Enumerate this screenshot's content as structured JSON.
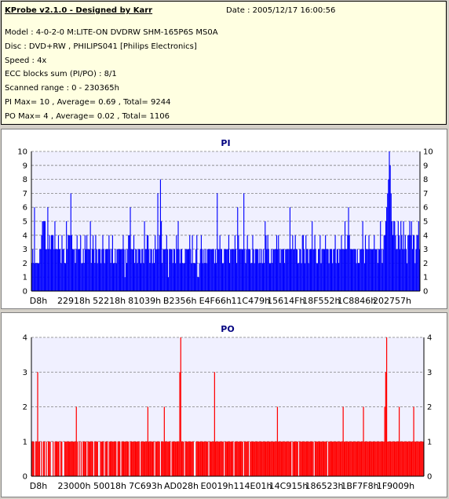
{
  "header": {
    "title": "KProbe v2.1.0 - Designed by Karr",
    "date": "Date : 2005/12/17 16:00:56",
    "lines": [
      "Model : 4-0-2-0 M:LITE-ON DVDRW SHM-165P6S MS0A",
      "Disc : DVD+RW , PHILIPS041 [Philips Electronics]",
      "Speed : 4x",
      "ECC blocks sum (PI/PO) : 8/1",
      "Scanned range : 0 - 230365h",
      "PI Max= 10 , Average= 0.69 , Total= 9244",
      "PO Max= 4 , Average= 0.02 , Total= 1106"
    ]
  },
  "chart_data": [
    {
      "type": "bar",
      "title": "PI",
      "color": "#0000ff",
      "ylim": [
        0,
        10
      ],
      "yticks": [
        0,
        1,
        2,
        3,
        4,
        5,
        6,
        7,
        8,
        9,
        10
      ],
      "xtick_labels": [
        "D8h",
        "22918h",
        "52218h",
        "81039h",
        "B2356h",
        "E4F66h",
        "11C479h",
        "15614Fh",
        "18F552h",
        "1C8846h",
        "202757h"
      ],
      "grid": true,
      "values": [
        2,
        3,
        2,
        6,
        2,
        2,
        2,
        2,
        2,
        3,
        3,
        4,
        5,
        5,
        5,
        5,
        3,
        3,
        6,
        3,
        4,
        3,
        4,
        4,
        4,
        3,
        5,
        3,
        3,
        3,
        4,
        3,
        3,
        2,
        4,
        3,
        3,
        2,
        2,
        5,
        3,
        4,
        4,
        4,
        7,
        4,
        3,
        3,
        3,
        2,
        3,
        4,
        3,
        3,
        3,
        4,
        2,
        2,
        3,
        2,
        4,
        3,
        4,
        3,
        3,
        3,
        5,
        2,
        3,
        4,
        3,
        2,
        4,
        3,
        2,
        3,
        3,
        3,
        2,
        3,
        4,
        3,
        2,
        3,
        3,
        3,
        3,
        4,
        3,
        2,
        3,
        4,
        2,
        2,
        3,
        2,
        3,
        3,
        3,
        3,
        3,
        3,
        3,
        4,
        3,
        1,
        3,
        2,
        3,
        4,
        4,
        6,
        3,
        3,
        3,
        4,
        2,
        3,
        3,
        2,
        3,
        3,
        3,
        2,
        3,
        3,
        2,
        5,
        3,
        3,
        4,
        4,
        3,
        2,
        3,
        3,
        2,
        3,
        2,
        4,
        3,
        3,
        7,
        3,
        4,
        8,
        5,
        2,
        3,
        3,
        3,
        3,
        4,
        3,
        1,
        3,
        3,
        3,
        3,
        2,
        3,
        3,
        2,
        4,
        3,
        5,
        3,
        2,
        3,
        3,
        2,
        2,
        2,
        3,
        3,
        3,
        3,
        3,
        4,
        3,
        2,
        4,
        2,
        2,
        2,
        3,
        4,
        1,
        1,
        2,
        3,
        4,
        3,
        2,
        3,
        2,
        3,
        2,
        3,
        3,
        3,
        3,
        3,
        3,
        3,
        3,
        2,
        3,
        2,
        7,
        3,
        3,
        4,
        3,
        3,
        2,
        2,
        3,
        3,
        3,
        3,
        3,
        4,
        2,
        3,
        3,
        3,
        3,
        3,
        4,
        3,
        2,
        6,
        4,
        3,
        3,
        3,
        3,
        3,
        7,
        3,
        2,
        3,
        4,
        3,
        3,
        3,
        2,
        2,
        4,
        3,
        2,
        3,
        3,
        3,
        3,
        2,
        3,
        2,
        3,
        2,
        3,
        2,
        5,
        4,
        3,
        4,
        3,
        2,
        2,
        3,
        2,
        3,
        3,
        3,
        3,
        4,
        3,
        4,
        3,
        2,
        3,
        3,
        3,
        3,
        2,
        3,
        3,
        3,
        3,
        3,
        6,
        3,
        3,
        4,
        3,
        3,
        4,
        3,
        3,
        2,
        2,
        3,
        3,
        2,
        4,
        4,
        3,
        2,
        4,
        3,
        3,
        2,
        3,
        3,
        3,
        5,
        3,
        3,
        4,
        3,
        2,
        2,
        3,
        3,
        4,
        2,
        3,
        3,
        3,
        3,
        4,
        3,
        3,
        3,
        2,
        3,
        3,
        3,
        2,
        3,
        3,
        4,
        2,
        3,
        3,
        2,
        3,
        3,
        4,
        3,
        3,
        3,
        5,
        3,
        3,
        4,
        6,
        4,
        3,
        3,
        3,
        3,
        3,
        3,
        3,
        2,
        3,
        2,
        2,
        3,
        3,
        3,
        5,
        3,
        2,
        4,
        3,
        3,
        3,
        4,
        3,
        3,
        3,
        3,
        3,
        4,
        3,
        3,
        3,
        2,
        3,
        3,
        5,
        3,
        2,
        3,
        4,
        4,
        5,
        6,
        7,
        8,
        10,
        9,
        7,
        5,
        4,
        5,
        5,
        4,
        3,
        3,
        5,
        4,
        3,
        5,
        4,
        3,
        5,
        3,
        4,
        3,
        2,
        4,
        4,
        5,
        4,
        5,
        3,
        4,
        4,
        2,
        3,
        4,
        4,
        5,
        3
      ]
    },
    {
      "type": "bar",
      "title": "PO",
      "color": "#ff0000",
      "ylim": [
        0,
        4
      ],
      "yticks": [
        0,
        1,
        2,
        3,
        4
      ],
      "xtick_labels": [
        "D8h",
        "23000h",
        "50018h",
        "7C693h",
        "AD028h",
        "E0019h",
        "114E01h",
        "14C915h",
        "186523h",
        "1BF7F8h",
        "1F9009h"
      ],
      "grid": true,
      "values": [
        1,
        1,
        1,
        0,
        1,
        1,
        3,
        1,
        1,
        0,
        1,
        0,
        1,
        1,
        0,
        1,
        0,
        1,
        1,
        1,
        0,
        0,
        1,
        0,
        1,
        1,
        1,
        1,
        1,
        0,
        1,
        1,
        0,
        0,
        1,
        1,
        1,
        1,
        1,
        1,
        1,
        1,
        1,
        1,
        1,
        1,
        2,
        1,
        0,
        1,
        0,
        1,
        0,
        1,
        1,
        1,
        1,
        0,
        1,
        1,
        1,
        1,
        1,
        1,
        0,
        1,
        1,
        1,
        1,
        0,
        0,
        1,
        1,
        1,
        1,
        0,
        1,
        1,
        1,
        0,
        1,
        1,
        1,
        1,
        1,
        1,
        1,
        1,
        0,
        1,
        1,
        1,
        0,
        1,
        1,
        1,
        1,
        1,
        1,
        1,
        1,
        0,
        1,
        1,
        1,
        1,
        1,
        1,
        1,
        1,
        1,
        1,
        0,
        1,
        1,
        1,
        1,
        1,
        1,
        1,
        2,
        1,
        1,
        1,
        1,
        1,
        1,
        0,
        1,
        1,
        1,
        1,
        1,
        0,
        1,
        1,
        1,
        2,
        1,
        1,
        1,
        1,
        1,
        1,
        0,
        1,
        1,
        1,
        1,
        1,
        1,
        1,
        1,
        3,
        4,
        1,
        1,
        1,
        0,
        1,
        1,
        1,
        1,
        1,
        1,
        1,
        1,
        1,
        0,
        0,
        1,
        1,
        1,
        1,
        1,
        1,
        1,
        1,
        1,
        1,
        1,
        1,
        1,
        0,
        1,
        1,
        1,
        1,
        1,
        3,
        1,
        1,
        1,
        1,
        1,
        1,
        1,
        1,
        1,
        0,
        1,
        1,
        1,
        1,
        1,
        1,
        1,
        1,
        1,
        0,
        1,
        1,
        1,
        1,
        1,
        1,
        1,
        1,
        1,
        0,
        1,
        1,
        1,
        1,
        1,
        0,
        1,
        1,
        1,
        1,
        1,
        1,
        1,
        1,
        1,
        1,
        1,
        1,
        1,
        1,
        1,
        1,
        1,
        1,
        1,
        1,
        1,
        1,
        1,
        1,
        1,
        1,
        1,
        1,
        2,
        1,
        1,
        1,
        1,
        1,
        1,
        1,
        1,
        1,
        1,
        1,
        1,
        1,
        1,
        0,
        1,
        1,
        1,
        1,
        1,
        1,
        0,
        1,
        1,
        1,
        1,
        1,
        1,
        1,
        1,
        1,
        1,
        1,
        1,
        1,
        1,
        1,
        0,
        1,
        1,
        1,
        1,
        1,
        1,
        1,
        1,
        1,
        1,
        1,
        1,
        1,
        0,
        1,
        1,
        1,
        1,
        1,
        1,
        1,
        1,
        1,
        1,
        1,
        1,
        1,
        1,
        1,
        2,
        1,
        1,
        1,
        1,
        1,
        1,
        1,
        1,
        1,
        1,
        1,
        1,
        1,
        1,
        1,
        1,
        1,
        1,
        1,
        1,
        2,
        1,
        1,
        1,
        1,
        1,
        1,
        1,
        1,
        1,
        1,
        1,
        1,
        1,
        1,
        1,
        1,
        1,
        1,
        1,
        1,
        1,
        2,
        3,
        4,
        1,
        1,
        1,
        1,
        1,
        1,
        1,
        1,
        1,
        1,
        1,
        1,
        2,
        1,
        1,
        1,
        1,
        1,
        1,
        1,
        1,
        1,
        1,
        1,
        1,
        1,
        1,
        2,
        1,
        1,
        1,
        1,
        1,
        1,
        1,
        1,
        1,
        1
      ]
    }
  ]
}
